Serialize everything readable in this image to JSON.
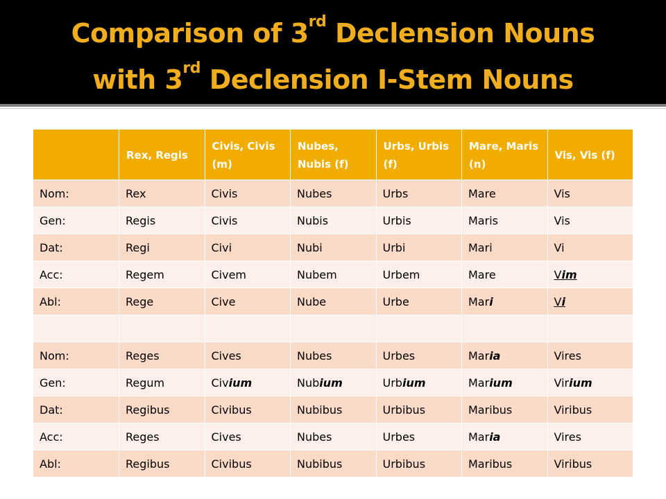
{
  "title": {
    "line1_a": "Comparison of 3",
    "line1_sup": "rd",
    "line1_b": " Declension Nouns",
    "line2_a": "with 3",
    "line2_sup": "rd",
    "line2_b": " Declension I-Stem Nouns"
  },
  "colors": {
    "title_band": "#000000",
    "title_text": "#f0ad1e",
    "header_fill": "#f0ad00",
    "row_dark": "#fbdac8",
    "row_light": "#fdf0ea"
  },
  "table": {
    "headers": [
      "",
      "Rex, Regis",
      "Civis, Civis (m)",
      "Nubes, Nubis (f)",
      "Urbs, Urbis (f)",
      "Mare, Maris (n)",
      "Vis, Vis (f)"
    ],
    "rows": [
      [
        [
          "Nom:"
        ],
        [
          "Rex"
        ],
        [
          "Civis"
        ],
        [
          "Nubes"
        ],
        [
          "Urbs"
        ],
        [
          "Mare"
        ],
        [
          "Vis"
        ]
      ],
      [
        [
          "Gen:"
        ],
        [
          "Regis"
        ],
        [
          "Civis"
        ],
        [
          "Nubis"
        ],
        [
          "Urbis"
        ],
        [
          "Maris"
        ],
        [
          "Vis"
        ]
      ],
      [
        [
          "Dat:"
        ],
        [
          "Regi"
        ],
        [
          "Civi"
        ],
        [
          "Nubi"
        ],
        [
          "Urbi"
        ],
        [
          "Mari"
        ],
        [
          "Vi"
        ]
      ],
      [
        [
          "Acc:"
        ],
        [
          "Regem"
        ],
        [
          "Civem"
        ],
        [
          "Nubem"
        ],
        [
          "Urbem"
        ],
        [
          "Mare"
        ],
        [
          "V",
          "im"
        ]
      ],
      [
        [
          "Abl:"
        ],
        [
          "Rege"
        ],
        [
          "Cive"
        ],
        [
          "Nube"
        ],
        [
          "Urbe"
        ],
        [
          "Mar",
          "i"
        ],
        [
          "V",
          "i"
        ]
      ],
      [
        [
          ""
        ],
        [
          ""
        ],
        [
          ""
        ],
        [
          ""
        ],
        [
          ""
        ],
        [
          ""
        ],
        [
          ""
        ]
      ],
      [
        [
          "Nom:"
        ],
        [
          "Reges"
        ],
        [
          "Cives"
        ],
        [
          "Nubes"
        ],
        [
          "Urbes"
        ],
        [
          "Mar",
          "ia"
        ],
        [
          "Vires"
        ]
      ],
      [
        [
          "Gen:"
        ],
        [
          "Regum"
        ],
        [
          "Civ",
          "ium"
        ],
        [
          "Nub",
          "ium"
        ],
        [
          "Urb",
          "ium"
        ],
        [
          "Mar",
          "ium"
        ],
        [
          "Vir",
          "ium"
        ]
      ],
      [
        [
          "Dat:"
        ],
        [
          "Regibus"
        ],
        [
          "Civibus"
        ],
        [
          "Nubibus"
        ],
        [
          "Urbibus"
        ],
        [
          "Maribus"
        ],
        [
          "Viribus"
        ]
      ],
      [
        [
          "Acc:"
        ],
        [
          "Reges"
        ],
        [
          "Cives"
        ],
        [
          "Nubes"
        ],
        [
          "Urbes"
        ],
        [
          "Mar",
          "ia"
        ],
        [
          "Vires"
        ]
      ],
      [
        [
          "Abl:"
        ],
        [
          "Regibus"
        ],
        [
          "Civibus"
        ],
        [
          "Nubibus"
        ],
        [
          "Urbibus"
        ],
        [
          "Maribus"
        ],
        [
          "Viribus"
        ]
      ]
    ],
    "underlined_cells": [
      [
        3,
        6
      ],
      [
        4,
        6
      ]
    ]
  }
}
